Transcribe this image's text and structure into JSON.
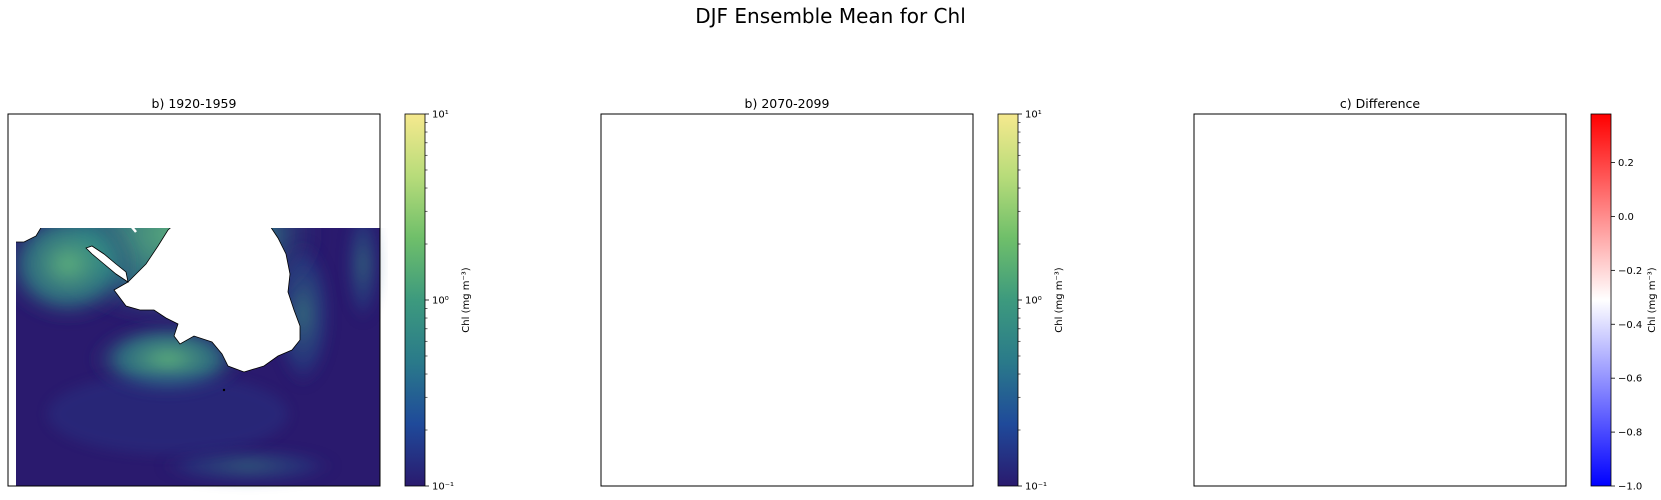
{
  "figure": {
    "title": "DJF Ensemble Mean for Chl"
  },
  "chart_data": [
    {
      "type": "heatmap",
      "title": "b) 1920-1959",
      "projection": "south-polar-stereographic",
      "colormap": "haline-like (dark blue to yellow)",
      "colorbar": {
        "label": "Chl (mg m⁻³)",
        "scale": "log",
        "range": [
          0.1,
          10
        ],
        "ticks": [
          {
            "value": 10,
            "label": "10¹"
          },
          {
            "value": 1,
            "label": "10⁰"
          },
          {
            "value": 0.1,
            "label": "10⁻¹"
          }
        ],
        "colors": [
          "#2a1a6e",
          "#1f4a9a",
          "#2a7a8a",
          "#3d9a7e",
          "#6fbf6a",
          "#b8dc7a",
          "#f6e98e"
        ]
      }
    },
    {
      "type": "heatmap",
      "title": "b) 2070-2099",
      "projection": "south-polar-stereographic",
      "colormap": "haline-like (dark blue to yellow)",
      "colorbar": {
        "label": "Chl (mg m⁻³)",
        "scale": "log",
        "range": [
          0.1,
          10
        ],
        "ticks": [
          {
            "value": 10,
            "label": "10¹"
          },
          {
            "value": 1,
            "label": "10⁰"
          },
          {
            "value": 0.1,
            "label": "10⁻¹"
          }
        ],
        "colors": [
          "#2a1a6e",
          "#1f4a9a",
          "#2a7a8a",
          "#3d9a7e",
          "#6fbf6a",
          "#b8dc7a",
          "#f6e98e"
        ]
      }
    },
    {
      "type": "heatmap",
      "title": "c) Difference",
      "projection": "south-polar-stereographic",
      "colormap": "bwr",
      "colorbar": {
        "label": "Chl (mg m⁻³)",
        "scale": "linear",
        "range": [
          -1.0,
          0.38
        ],
        "ticks": [
          {
            "value": 0.2,
            "label": "0.2"
          },
          {
            "value": 0.0,
            "label": "0.0"
          },
          {
            "value": -0.2,
            "label": "−0.2"
          },
          {
            "value": -0.4,
            "label": "−0.4"
          },
          {
            "value": -0.6,
            "label": "−0.6"
          },
          {
            "value": -0.8,
            "label": "−0.8"
          },
          {
            "value": -1.0,
            "label": "−1.0"
          }
        ],
        "colors": [
          "#0000ff",
          "#ffffff",
          "#ff0000"
        ]
      }
    }
  ]
}
